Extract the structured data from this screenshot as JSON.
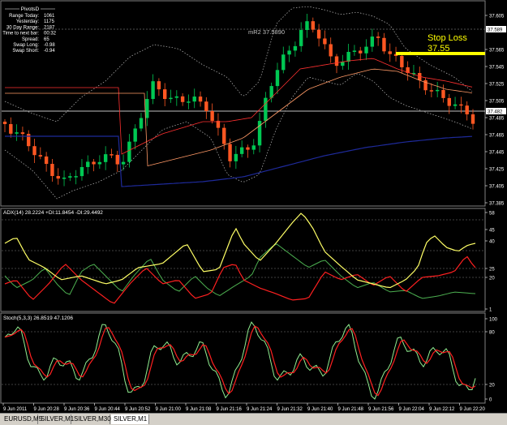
{
  "info_box": {
    "title": "PivotsD",
    "rows": [
      {
        "label": "Range Today:",
        "value": "1061"
      },
      {
        "label": "Yesterday:",
        "value": "1175"
      },
      {
        "label": "30 Day Range:",
        "value": "2187"
      },
      {
        "label": "Time to next bar:",
        "value": "00:32"
      },
      {
        "label": "Spread:",
        "value": "65"
      },
      {
        "label": "Swap Long:",
        "value": "-0.98"
      },
      {
        "label": "Swap Short:",
        "value": "-0.94"
      }
    ]
  },
  "main_panel": {
    "price_ticks": [
      "37.605",
      "37.565",
      "37.545",
      "37.525",
      "37.505",
      "37.485",
      "37.465",
      "37.445",
      "37.425",
      "37.405",
      "37.385"
    ],
    "current_price_tag": "37.482",
    "level_tag": "37.589",
    "mr2_label": "mR2  37.5890",
    "stop_loss_text": "Stop Loss",
    "stop_loss_value": "37.55"
  },
  "adx_panel": {
    "label": "ADX(14) 28.2224 +DI:11.8454 -DI:29.4492",
    "ticks": [
      "58",
      "45",
      "40",
      "25",
      "20",
      "1"
    ]
  },
  "stoch_panel": {
    "label": "Stoch(5,3,3) 26.8519 47.1206",
    "ticks": [
      "100",
      "80",
      "20",
      "0"
    ]
  },
  "time_axis": [
    "9 Jun 2011",
    "9 Jun 20:28",
    "9 Jun 20:36",
    "9 Jun 20:44",
    "9 Jun 20:52",
    "9 Jun 21:00",
    "9 Jun 21:08",
    "9 Jun 21:16",
    "9 Jun 21:24",
    "9 Jun 21:32",
    "9 Jun 21:40",
    "9 Jun 21:48",
    "9 Jun 21:56",
    "9 Jun 22:04",
    "9 Jun 22:12",
    "9 Jun 22:20"
  ],
  "tabs": [
    "EURUSD,M5",
    "SILVER,M1",
    "SILVER,M30",
    "SILVER,M1"
  ],
  "colors": {
    "bull": "#00c853",
    "bear": "#ff5722",
    "adx_line": "#ffff66",
    "plus_di": "#4caf50",
    "minus_di": "#ff2020",
    "stoch_main": "#90ee90",
    "stoch_signal": "#ff2020",
    "stop_loss": "#ffff00"
  }
}
